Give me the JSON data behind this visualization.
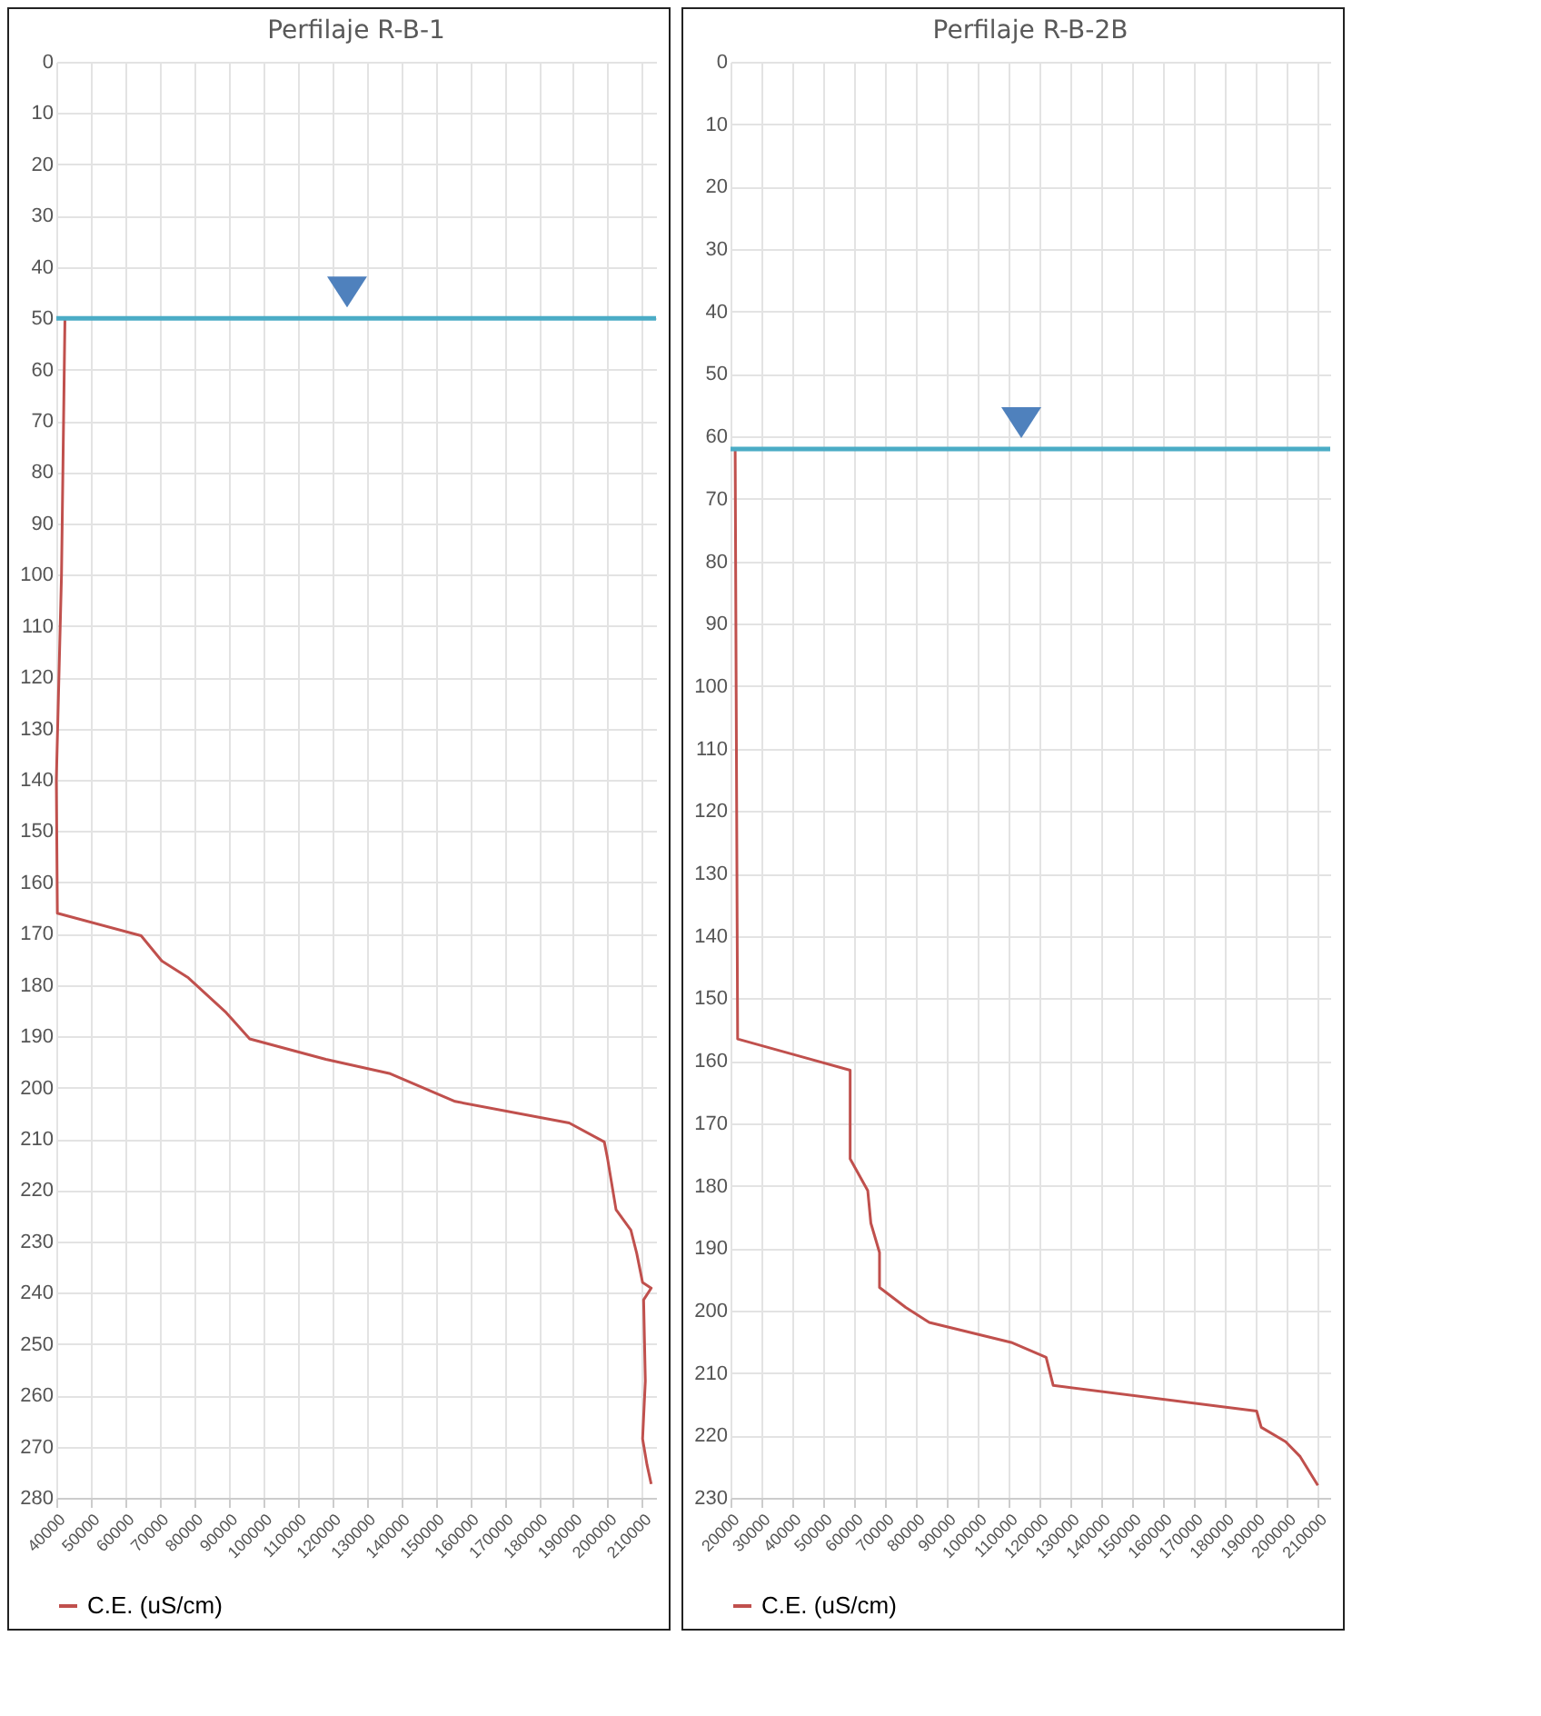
{
  "chart_data": [
    {
      "type": "line",
      "title": "Perfilaje R-B-1",
      "legend": "bottom",
      "grid": true,
      "xlim": [
        40000,
        214000
      ],
      "xticks": [
        40000,
        50000,
        60000,
        70000,
        80000,
        90000,
        100000,
        110000,
        120000,
        130000,
        140000,
        150000,
        160000,
        170000,
        180000,
        190000,
        200000,
        210000
      ],
      "ylim": [
        280,
        0
      ],
      "yticks": [
        0,
        10,
        20,
        30,
        40,
        50,
        60,
        70,
        80,
        90,
        100,
        110,
        120,
        130,
        140,
        150,
        160,
        170,
        180,
        190,
        200,
        210,
        220,
        230,
        240,
        250,
        260,
        270,
        280
      ],
      "ref_lines": [
        {
          "axis": "y",
          "value": 50,
          "color": "#4bacc6"
        }
      ],
      "series": [
        {
          "name": "C.E. (uS/cm)",
          "color": "#c0504d",
          "x": [
            42500,
            41500,
            40000,
            40300,
            64600,
            70600,
            78300,
            89300,
            96100,
            118200,
            136900,
            155700,
            188800,
            199000,
            199900,
            202400,
            206700,
            208400,
            210100,
            212600,
            210400,
            210900,
            210100,
            211400,
            212600
          ],
          "values": [
            50,
            100,
            140,
            166,
            170.4,
            175.3,
            178.6,
            185.4,
            190.5,
            194.5,
            197.3,
            202.7,
            206.9,
            210.6,
            213.7,
            223.8,
            227.8,
            232.3,
            238,
            239.1,
            241.4,
            257.2,
            268.5,
            273.6,
            277.3
          ]
        }
      ]
    },
    {
      "type": "line",
      "title": "Perfilaje R-B-2B",
      "legend": "bottom",
      "grid": true,
      "xlim": [
        20000,
        214000
      ],
      "xticks": [
        20000,
        30000,
        40000,
        50000,
        60000,
        70000,
        80000,
        90000,
        100000,
        110000,
        120000,
        130000,
        140000,
        150000,
        160000,
        170000,
        180000,
        190000,
        200000,
        210000
      ],
      "ylim": [
        230,
        0
      ],
      "yticks": [
        0,
        10,
        20,
        30,
        40,
        50,
        60,
        70,
        80,
        90,
        100,
        110,
        120,
        130,
        140,
        150,
        160,
        170,
        180,
        190,
        200,
        210,
        220,
        230
      ],
      "ref_lines": [
        {
          "axis": "y",
          "value": 62,
          "color": "#4bacc6"
        }
      ],
      "series": [
        {
          "name": "C.E. (uS/cm)",
          "color": "#c0504d",
          "x": [
            21500,
            22300,
            42700,
            58700,
            58700,
            64400,
            65400,
            68200,
            68200,
            76700,
            84300,
            110800,
            122100,
            124400,
            190200,
            191700,
            199600,
            204300,
            210000
          ],
          "values": [
            62,
            156.5,
            159.3,
            161.5,
            175.7,
            180.8,
            186,
            190.7,
            196.3,
            199.5,
            201.9,
            205.1,
            207.5,
            212,
            216.1,
            218.7,
            221,
            223.4,
            228
          ]
        }
      ]
    }
  ]
}
